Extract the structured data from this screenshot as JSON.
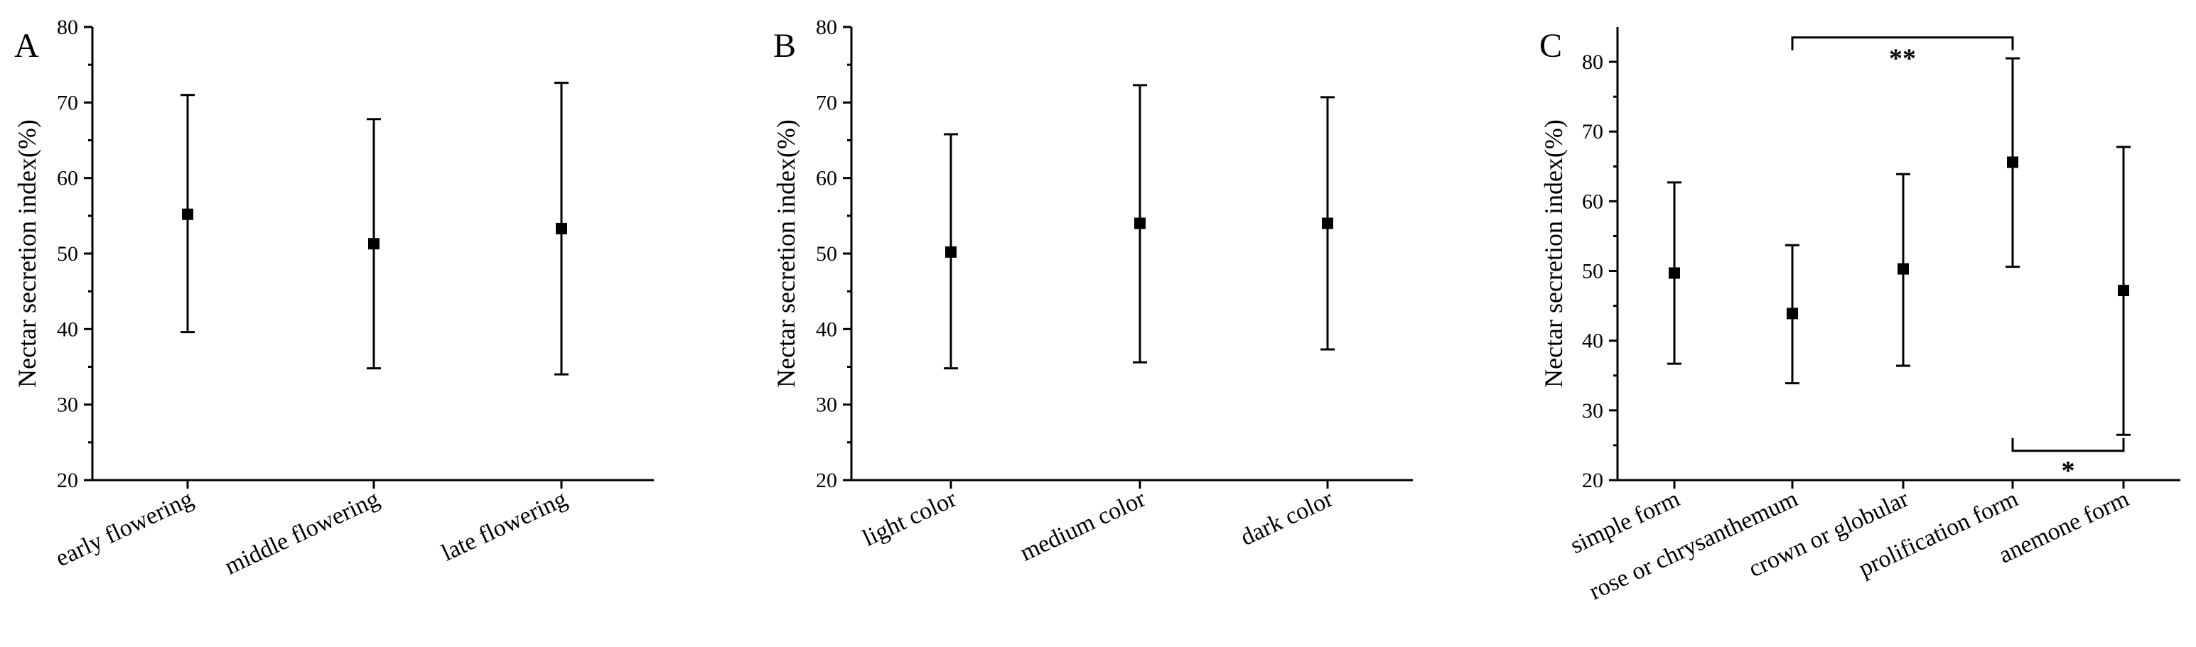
{
  "chart_data": [
    {
      "type": "scatter",
      "panel_label": "A",
      "ylabel": "Nectar secretion index(%)",
      "ylim": [
        20,
        80
      ],
      "yticks": [
        20,
        30,
        40,
        50,
        60,
        70,
        80
      ],
      "categories": [
        "early flowering",
        "middle flowering",
        "late flowering"
      ],
      "values": [
        55.2,
        51.3,
        53.3
      ],
      "error_low": [
        39.6,
        34.8,
        34.0
      ],
      "error_high": [
        71.0,
        67.8,
        72.6
      ],
      "significance": []
    },
    {
      "type": "scatter",
      "panel_label": "B",
      "ylabel": "Nectar secretion index(%)",
      "ylim": [
        20,
        80
      ],
      "yticks": [
        20,
        30,
        40,
        50,
        60,
        70,
        80
      ],
      "categories": [
        "light color",
        "medium color",
        "dark color"
      ],
      "values": [
        50.2,
        54.0,
        54.0
      ],
      "error_low": [
        34.8,
        35.6,
        37.3
      ],
      "error_high": [
        65.8,
        72.3,
        70.7
      ],
      "significance": []
    },
    {
      "type": "scatter",
      "panel_label": "C",
      "ylabel": "Nectar secretion index(%)",
      "ylim": [
        20,
        85
      ],
      "yticks": [
        20,
        30,
        40,
        50,
        60,
        70,
        80
      ],
      "categories": [
        "simple form",
        "rose or chrysanthemum",
        "crown or globular",
        "prolification form",
        "anemone form"
      ],
      "values": [
        49.7,
        43.9,
        50.3,
        65.6,
        47.2
      ],
      "error_low": [
        36.7,
        33.9,
        36.4,
        50.6,
        26.5
      ],
      "error_high": [
        62.7,
        53.7,
        63.9,
        80.5,
        67.8
      ],
      "significance": [
        {
          "from": 1,
          "to": 3,
          "label": "**",
          "level": 83.5,
          "side": "top"
        },
        {
          "from": 3,
          "to": 4,
          "label": "*",
          "level": 24.2,
          "side": "bottom"
        }
      ]
    }
  ]
}
